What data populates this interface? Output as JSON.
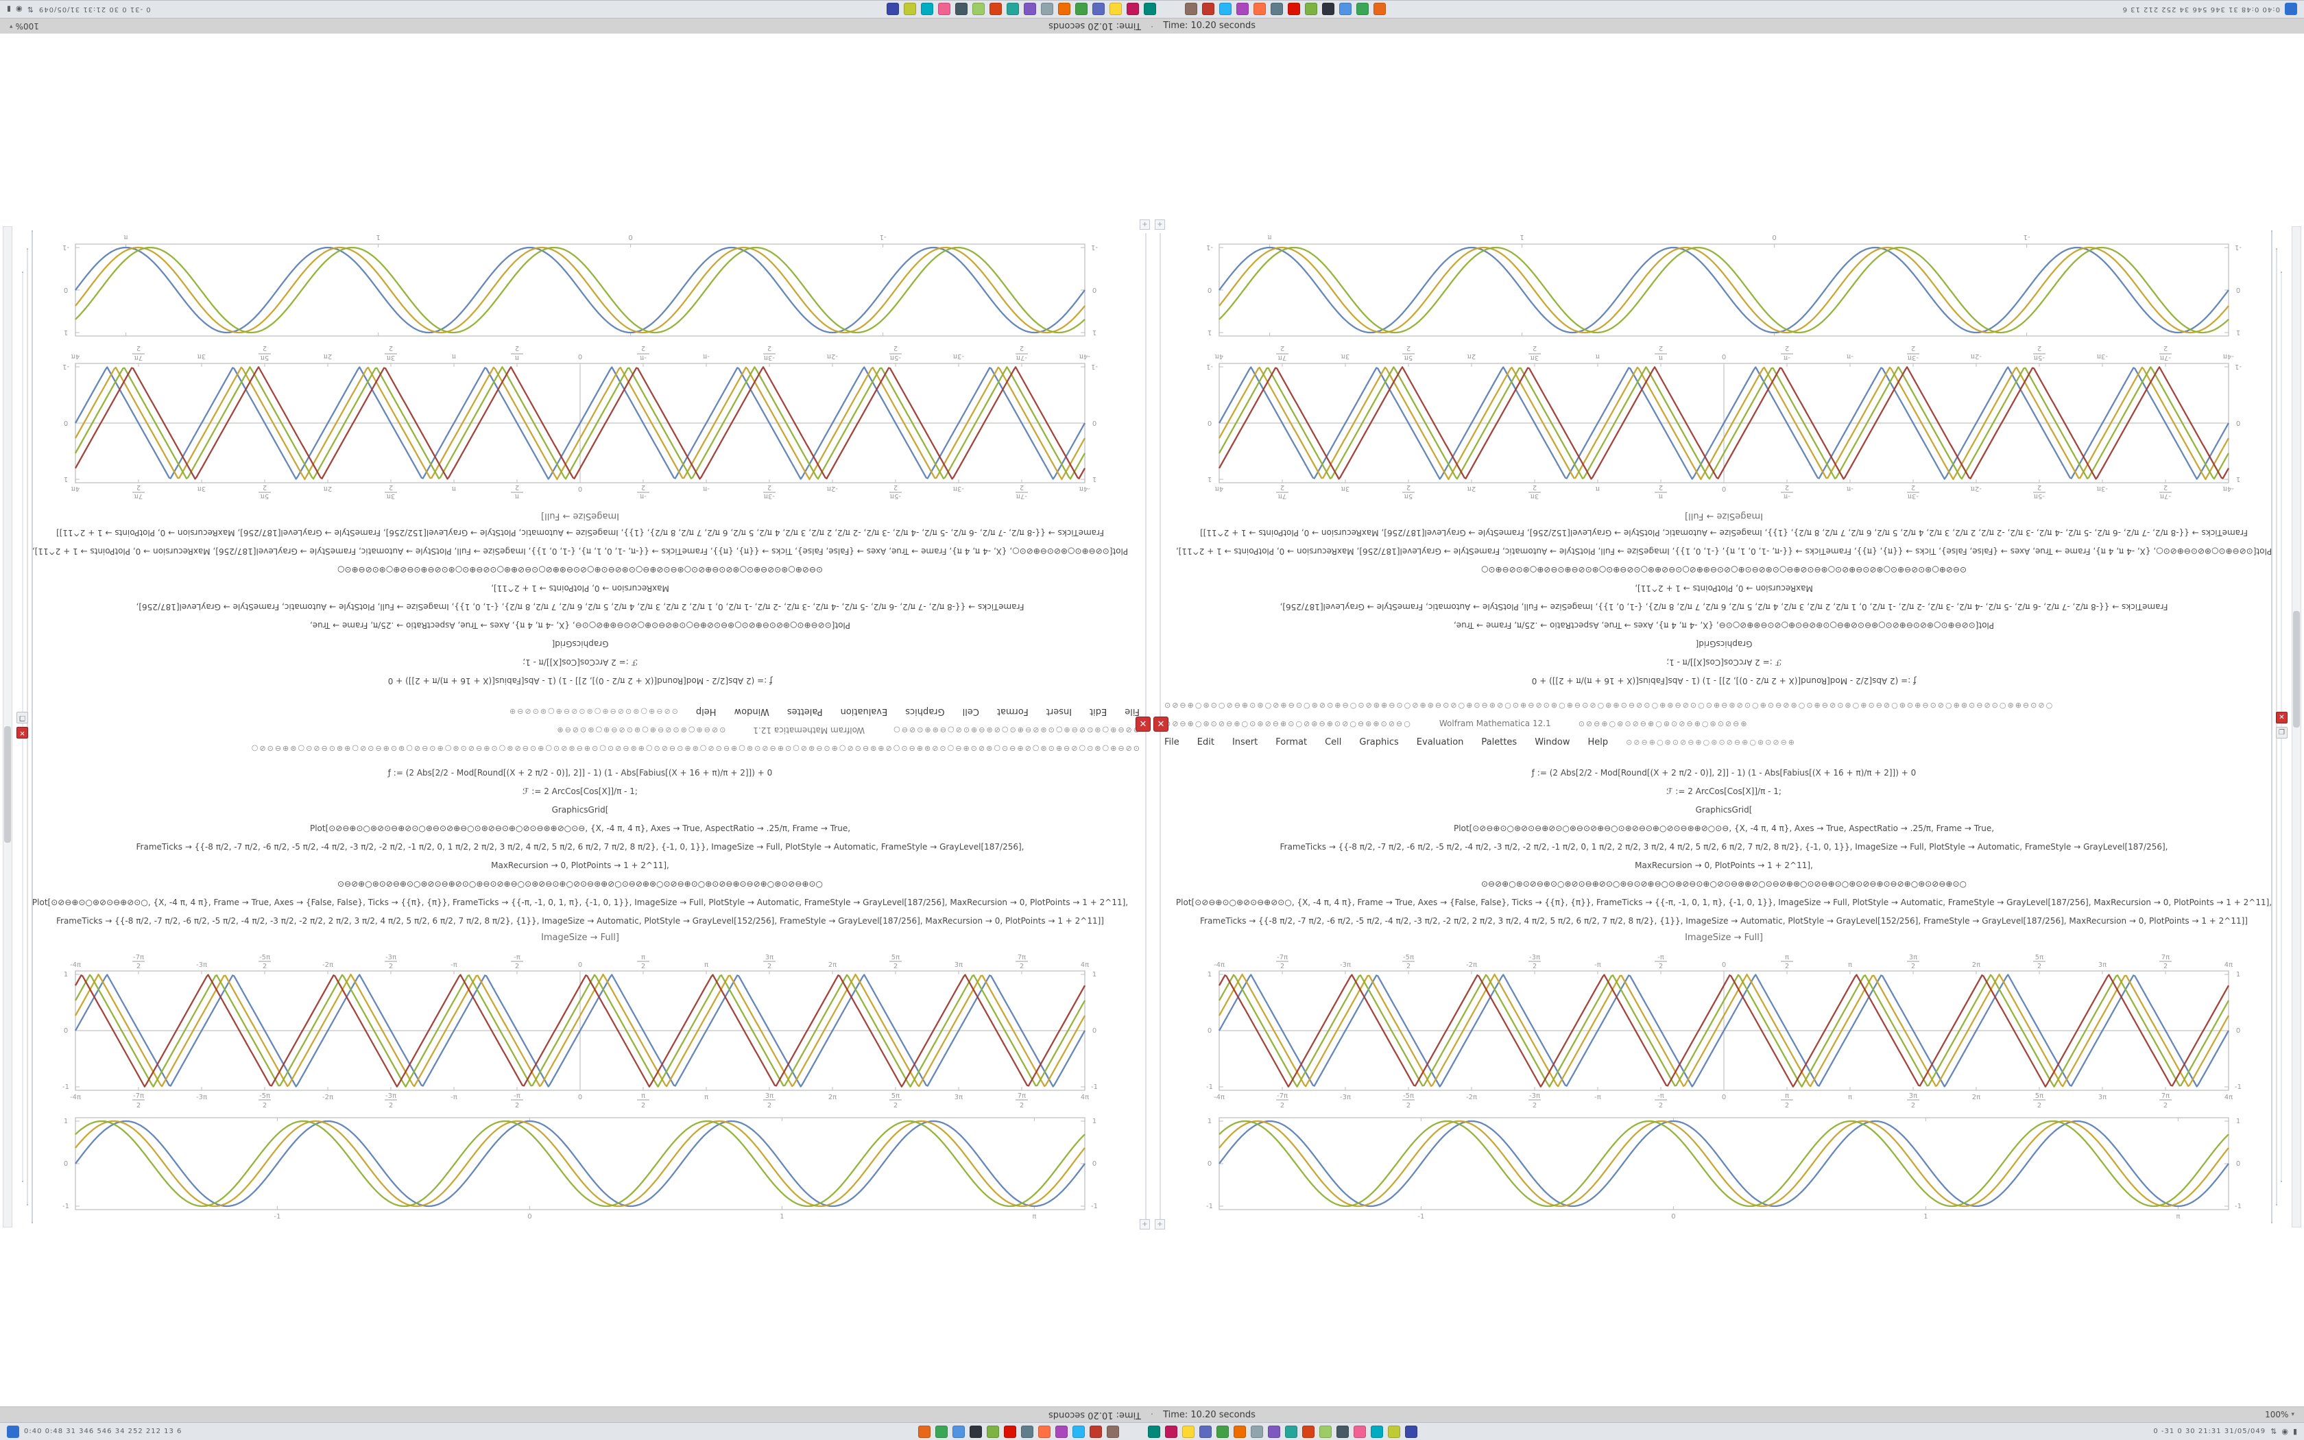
{
  "window": {
    "title": "Time: 10.20 seconds",
    "title_separator": "·",
    "app_title": "Wolfram Mathematica 12.1",
    "zoom_label": "100%",
    "zoom_caret": "▾",
    "close_glyph": "✕",
    "restore_glyph": "❐",
    "menu": [
      "File",
      "Edit",
      "Insert",
      "Format",
      "Cell",
      "Graphics",
      "Evaluation",
      "Palettes",
      "Window",
      "Help"
    ]
  },
  "taskbar": {
    "launcher": {
      "name": "launcher-icon",
      "color": "#2f6fd0"
    },
    "tray_left": "0:40  0:48  31  346  546  34  252  212  13  6",
    "tray_right": "0 -31 0 30   21:31   31/05/049",
    "status_icons": [
      {
        "name": "network-icon",
        "glyph": "⇅"
      },
      {
        "name": "volume-icon",
        "glyph": "◉"
      },
      {
        "name": "battery-icon",
        "glyph": "▮"
      }
    ],
    "icons_left": [
      {
        "name": "firefox-icon",
        "color": "#e8681a"
      },
      {
        "name": "chrome-icon",
        "color": "#3aa757"
      },
      {
        "name": "files-icon",
        "color": "#5294e2"
      },
      {
        "name": "terminal-icon",
        "color": "#2f343f"
      },
      {
        "name": "text-editor-icon",
        "color": "#7cb342"
      },
      {
        "name": "mathematica-icon",
        "color": "#dd1100"
      },
      {
        "name": "calculator-icon",
        "color": "#607d8b"
      },
      {
        "name": "media-player-icon",
        "color": "#ff7043"
      },
      {
        "name": "image-viewer-icon",
        "color": "#ab47bc"
      },
      {
        "name": "mail-icon",
        "color": "#29b6f6"
      },
      {
        "name": "office-icon",
        "color": "#c0392b"
      },
      {
        "name": "archive-icon",
        "color": "#8d6e63"
      }
    ],
    "icons_right": [
      {
        "name": "app-icon-13",
        "color": "#00897b"
      },
      {
        "name": "app-icon-14",
        "color": "#c2185b"
      },
      {
        "name": "app-icon-15",
        "color": "#fdd835"
      },
      {
        "name": "app-icon-16",
        "color": "#5c6bc0"
      },
      {
        "name": "app-icon-17",
        "color": "#43a047"
      },
      {
        "name": "app-icon-18",
        "color": "#ef6c00"
      },
      {
        "name": "app-icon-19",
        "color": "#90a4ae"
      },
      {
        "name": "app-icon-20",
        "color": "#7e57c2"
      },
      {
        "name": "app-icon-21",
        "color": "#26a69a"
      },
      {
        "name": "app-icon-22",
        "color": "#d84315"
      },
      {
        "name": "app-icon-23",
        "color": "#9ccc65"
      },
      {
        "name": "app-icon-24",
        "color": "#455a64"
      },
      {
        "name": "app-icon-25",
        "color": "#f06292"
      },
      {
        "name": "app-icon-26",
        "color": "#00acc1"
      },
      {
        "name": "app-icon-27",
        "color": "#c0ca33"
      },
      {
        "name": "app-icon-28",
        "color": "#3949ab"
      }
    ]
  },
  "notebook": {
    "marker_glyph": "+",
    "caption": "ImageSize → Full]",
    "glyph_row_long": "⊙⊘⊖⊕○⊛⊙○⊘⊖⊕⊙⊛○⊘⊕⊖⊙○⊛⊘⊙⊕⊖○⊙⊘⊛⊕⊖⊙○⊘⊕⊛⊖⊙⊘○⊕⊙⊖⊛⊘○⊙⊕⊖⊘⊙⊛○⊕⊖⊙⊘○⊛⊕⊙⊖⊘⊙○⊕⊛⊖⊘⊙○⊙⊕⊖⊛⊘⊙○⊕⊙⊖⊘⊛○⊙⊕⊖⊘⊙⊛○⊕⊙⊖⊘○⊛⊙⊕⊖⊙⊘○⊕⊛⊙⊖⊘⊙○⊛⊕⊖⊙⊘○",
    "glyph_row_short": "⊙⊘⊖⊕○⊛⊙⊘⊖⊕○⊙⊛⊘⊖⊕⊙○⊘⊛⊖⊕⊙⊘○⊖⊛⊕⊙⊘⊖○",
    "glyph_row_tail": "⊙⊘⊖⊕○⊛⊙⊘⊖⊕○⊛⊙⊘⊖⊕○⊛⊙⊘⊖⊕",
    "code_lines": [
      "ƒ := (2 Abs[2/2 - Mod[Round[(X + 2 π/2 - 0)], 2]] - 1) (1 - Abs[Fabius[(X + 16 + π)/π + 2]]) + 0",
      "ℱ := 2 ArcCos[Cos[X]]/π - 1;",
      "GraphicsGrid[",
      "Plot[⊙⊘⊖⊕⊙○⊛⊘⊙⊖⊕⊘⊙○⊛⊖⊙⊘⊕⊖○⊙⊛⊘⊖⊙⊕○⊘⊙⊖⊛⊕⊘○⊙⊖, {X, -4 π, 4 π}, Axes → True, AspectRatio → .25/π, Frame → True,",
      "FrameTicks → {{-8 π/2, -7 π/2, -6 π/2, -5 π/2, -4 π/2, -3 π/2, -2 π/2, -1 π/2, 0, 1 π/2, 2 π/2, 3 π/2, 4 π/2, 5 π/2, 6 π/2, 7 π/2, 8 π/2}, {-1, 0, 1}}, ImageSize → Full, PlotStyle → Automatic, FrameStyle → GrayLevel[187/256],",
      "MaxRecursion → 0, PlotPoints → 1 + 2^11],",
      "⊙⊖⊘⊕○⊛⊙⊘⊖⊕⊙○⊛⊘⊙⊖⊕⊘⊙○⊛⊖⊙⊘⊕⊖○⊙⊛⊘⊖⊙⊕○⊘⊙⊖⊛⊕⊘○⊙⊖⊘⊕⊛○⊙⊘⊖⊕⊙○⊛⊙⊘⊖⊕⊙⊖⊘⊕○⊛⊙⊘⊖⊕⊙○",
      "Plot[⊙⊘⊖⊕⊙○⊛⊘⊙⊖⊕⊘⊙○, {X, -4 π, 4 π}, Frame → True, Axes → {False, False}, Ticks → {{π}, {π}}, FrameTicks → {{-π, -1, 0, 1, π}, {-1, 0, 1}}, ImageSize → Full, PlotStyle → Automatic, FrameStyle → GrayLevel[187/256], MaxRecursion → 0, PlotPoints → 1 + 2^11],",
      "FrameTicks → {{-8 π/2, -7 π/2, -6 π/2, -5 π/2, -4 π/2, -3 π/2, -2 π/2, 2 π/2, 3 π/2, 4 π/2, 5 π/2, 6 π/2, 7 π/2, 8 π/2}, {1}}, ImageSize → Automatic, PlotStyle → GrayLevel[152/256], FrameStyle → GrayLevel[187/256], MaxRecursion → 0, PlotPoints → 1 + 2^11]]"
    ],
    "plots": {
      "smooth": {
        "type": "line",
        "shape": "sin",
        "cycles": 5,
        "xlim": [
          "-1",
          "π"
        ],
        "ylim": [
          -1,
          1
        ],
        "x_ticks": [
          "-1",
          "0",
          "1",
          "π"
        ],
        "x_tick_pos": [
          0.2,
          0.45,
          0.7,
          0.95
        ],
        "y_ticks": [
          "-1",
          "0",
          "1"
        ],
        "series": [
          {
            "name": "blue",
            "color": "#5E81B5",
            "phase": 0
          },
          {
            "name": "gold",
            "color": "#C7A229",
            "phase": 0.38
          },
          {
            "name": "olive",
            "color": "#8FB032",
            "phase": 0.76
          }
        ]
      },
      "triangle": {
        "type": "line",
        "shape": "tri",
        "cycles": 8,
        "xlim": [
          "-4π",
          "4π"
        ],
        "ylim": [
          -1,
          1
        ],
        "x_ticks": [
          "-4π",
          "-7π/2",
          "-3π",
          "-5π/2",
          "-2π",
          "-3π/2",
          "-π",
          "-π/2",
          "0",
          "π/2",
          "π",
          "3π/2",
          "2π",
          "5π/2",
          "3π",
          "7π/2",
          "4π"
        ],
        "y_ticks": [
          "-1",
          "0",
          "1"
        ],
        "series": [
          {
            "name": "blue",
            "color": "#5E81B5",
            "phase": 0
          },
          {
            "name": "gold",
            "color": "#C7A229",
            "phase": 0.42
          },
          {
            "name": "olive",
            "color": "#8FB032",
            "phase": 0.84
          },
          {
            "name": "maroon",
            "color": "#9E3B33",
            "phase": 1.26
          }
        ]
      }
    }
  }
}
